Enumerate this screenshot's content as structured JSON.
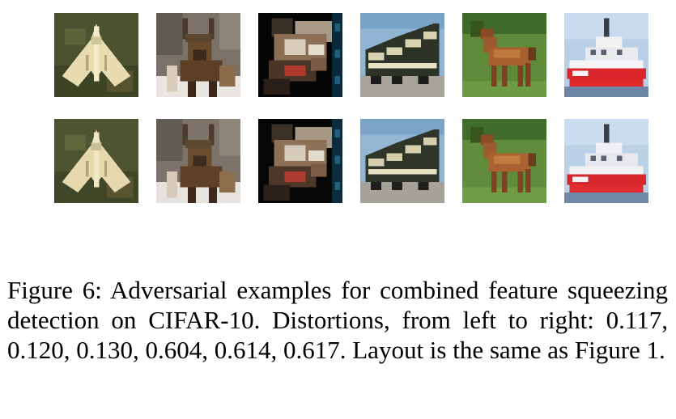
{
  "figure": {
    "images": [
      {
        "subject": "airplane",
        "icon": "airplane-image"
      },
      {
        "subject": "deer",
        "icon": "deer-image"
      },
      {
        "subject": "dog",
        "icon": "dog-image"
      },
      {
        "subject": "truck",
        "icon": "truck-image"
      },
      {
        "subject": "horse",
        "icon": "horse-image"
      },
      {
        "subject": "ship",
        "icon": "ship-image"
      }
    ],
    "rows": [
      {
        "name": "top-row"
      },
      {
        "name": "bottom-row"
      }
    ]
  },
  "caption": {
    "label": "Figure 6:",
    "text": " Adversarial examples for combined feature squeezing detection on CIFAR-10. Distortions, from left to right: 0.117, 0.120, 0.130, 0.604, 0.614, 0.617. Layout is the same as Figure 1."
  }
}
